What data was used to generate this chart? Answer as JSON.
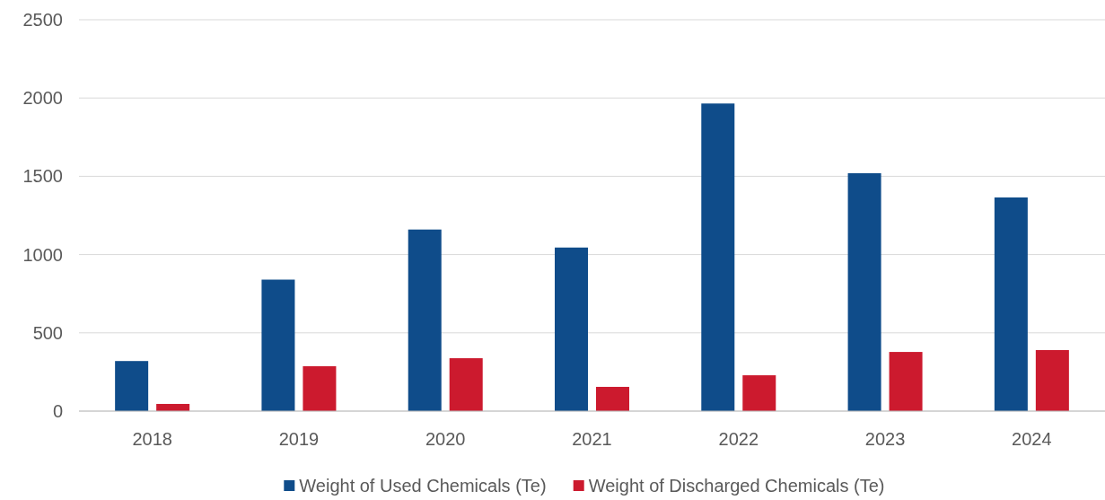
{
  "chart_data": {
    "type": "bar",
    "categories": [
      "2018",
      "2019",
      "2020",
      "2021",
      "2022",
      "2023",
      "2024"
    ],
    "series": [
      {
        "name": "Weight of Used Chemicals (Te)",
        "color": "#0f4c8a",
        "values": [
          320,
          840,
          1160,
          1045,
          1965,
          1520,
          1365
        ]
      },
      {
        "name": "Weight of Discharged Chemicals (Te)",
        "color": "#cc1a2e",
        "values": [
          46,
          287,
          338,
          155,
          229,
          378,
          390
        ]
      }
    ],
    "ylim": [
      0,
      2500
    ],
    "yticks": [
      0,
      500,
      1000,
      1500,
      2000,
      2500
    ],
    "grid": "y",
    "legend": "bottom"
  }
}
